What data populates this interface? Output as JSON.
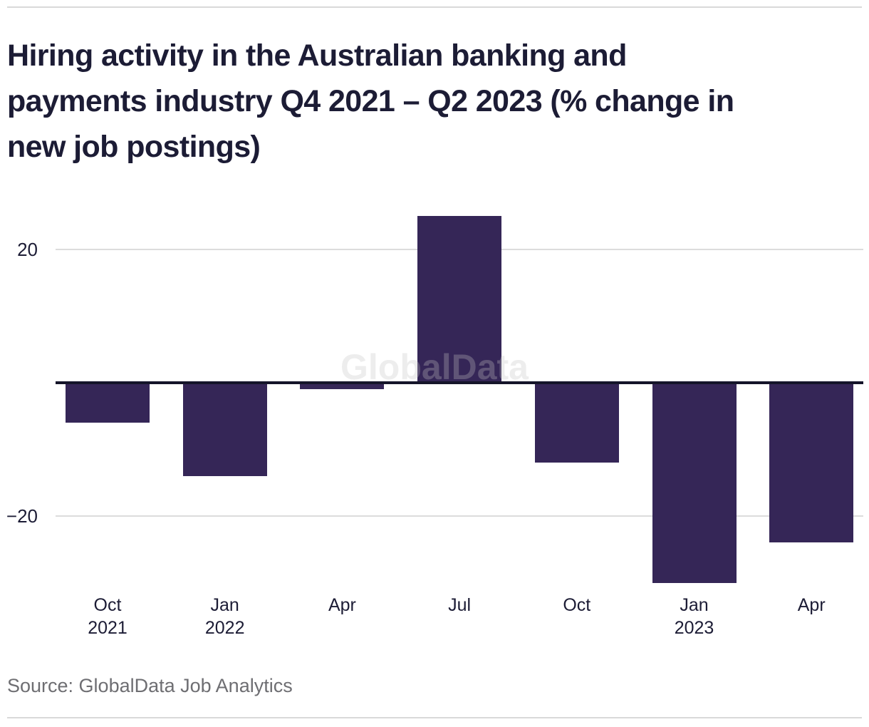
{
  "header": {
    "title": "Hiring activity in the Australian banking and payments industry Q4 2021 – Q2 2023 (% change in new job postings)",
    "title_lines": [
      "Hiring activity in the Australian banking and",
      "payments industry Q4 2021 – Q2 2023 (% change in",
      "new job postings)"
    ]
  },
  "watermark": {
    "text": "GlobalData"
  },
  "footer": {
    "source": "Source: GlobalData Job Analytics"
  },
  "colors": {
    "background": "#FFFFFF",
    "bar": "#352657",
    "axis_line": "#15152A",
    "gridline": "#DCDCDC",
    "rule": "#D9D9D9",
    "text_dark": "#1C1C35",
    "text_muted": "#6E6E72",
    "watermark": "rgba(195,195,195,0.30)"
  },
  "chart_data": {
    "type": "bar",
    "title": "Hiring activity in the Australian banking and payments industry Q4 2021 – Q2 2023 (% change in new job postings)",
    "series_name": "% change in new job postings",
    "categories": [
      "Oct 2021",
      "Jan 2022",
      "Apr 2022",
      "Jul 2022",
      "Oct 2022",
      "Jan 2023",
      "Apr 2023"
    ],
    "x_tick_lines": [
      [
        "Oct",
        "2021"
      ],
      [
        "Jan",
        "2022"
      ],
      [
        "Apr"
      ],
      [
        "Jul"
      ],
      [
        "Oct"
      ],
      [
        "Jan",
        "2023"
      ],
      [
        "Apr"
      ]
    ],
    "values": [
      -6,
      -14,
      -1,
      25,
      -12,
      -30,
      -24
    ],
    "y_ticks": [
      {
        "label": "20",
        "value": 20
      },
      {
        "label": "−20",
        "value": -20
      }
    ],
    "ylim": [
      -31,
      26
    ],
    "grid": "horizontal",
    "legend": "none",
    "bar_color": "#352657"
  }
}
